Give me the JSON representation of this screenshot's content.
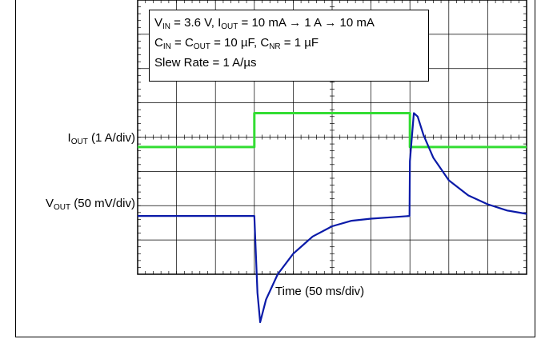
{
  "chart_data": {
    "type": "line",
    "title": "",
    "annotation": {
      "line1": {
        "v": "V",
        "v_sub": "IN",
        "eq1": " = 3.6 V, ",
        "i": "I",
        "i_sub": "OUT",
        "eq2": " = 10 mA → 1 A → 10 mA"
      },
      "line2": {
        "c1": "C",
        "c1_sub": "IN",
        "eq1": " = ",
        "c2": "C",
        "c2_sub": "OUT",
        "eq2": " = 10 µF, ",
        "c3": "C",
        "c3_sub": "NR",
        "eq3": " = 1 µF"
      },
      "line3": "Slew Rate = 1 A/µs"
    },
    "xlabel": "Time (50 ms/div)",
    "channels": [
      {
        "name": "I",
        "name_sub": "OUT",
        "scale": " (1 A/div)",
        "color": "#33dd33",
        "unit": "A"
      },
      {
        "name": "V",
        "name_sub": "OUT",
        "scale": " (50 mV/div)",
        "color": "#0a1aa8",
        "unit": "mV"
      }
    ],
    "grid": true,
    "divisions": {
      "x": 10,
      "y": 8
    },
    "x_range_div": [
      0,
      10
    ],
    "series": [
      {
        "name": "IOUT",
        "x": [
          0,
          3.0,
          3.0,
          7.0,
          7.0,
          10
        ],
        "y": [
          0.01,
          0.01,
          1.0,
          1.0,
          0.01,
          0.01
        ]
      },
      {
        "name": "VOUT",
        "x": [
          0,
          3.0,
          3.08,
          3.15,
          3.3,
          3.6,
          4.0,
          4.5,
          5.0,
          5.5,
          6.0,
          6.5,
          6.99,
          7.0,
          7.1,
          7.2,
          7.35,
          7.6,
          8.0,
          8.5,
          9.0,
          9.5,
          10
        ],
        "y": [
          0,
          0,
          -112,
          -155,
          -122,
          -85,
          -55,
          -30,
          -15,
          -7,
          -4,
          -2,
          0,
          80,
          150,
          145,
          118,
          85,
          52,
          30,
          17,
          8,
          3
        ]
      }
    ]
  }
}
